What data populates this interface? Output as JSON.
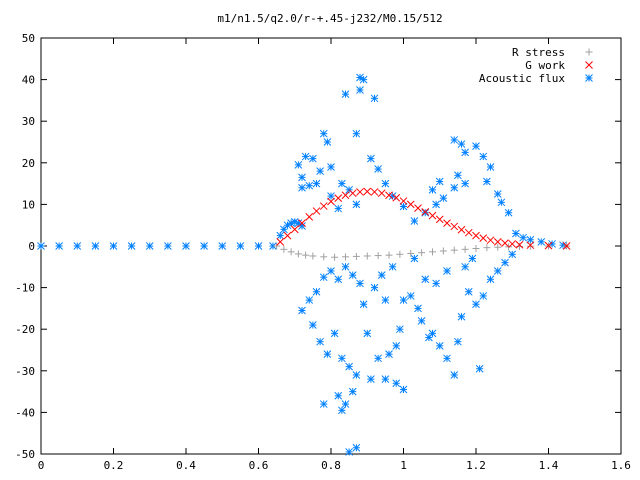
{
  "chart_data": {
    "type": "scatter",
    "title": "m1/n1.5/q2.0/r-+.45-j232/M0.15/512",
    "xlabel": "",
    "ylabel": "",
    "xlim": [
      0,
      1.6
    ],
    "ylim": [
      -50,
      50
    ],
    "x_ticks": [
      "0",
      "0.2",
      "0.4",
      "0.6",
      "0.8",
      "1",
      "1.2",
      "1.4",
      "1.6"
    ],
    "y_ticks": [
      "50",
      "40",
      "30",
      "20",
      "10",
      "0",
      "-10",
      "-20",
      "-30",
      "-40",
      "-50"
    ],
    "grid": false,
    "legend_position": "top-right",
    "series": [
      {
        "name": "R stress",
        "marker": "+",
        "color": "#a0a0a0",
        "points": [
          [
            0.65,
            0.0
          ],
          [
            0.67,
            -0.8
          ],
          [
            0.69,
            -1.4
          ],
          [
            0.71,
            -1.9
          ],
          [
            0.73,
            -2.2
          ],
          [
            0.75,
            -2.4
          ],
          [
            0.78,
            -2.6
          ],
          [
            0.81,
            -2.7
          ],
          [
            0.84,
            -2.6
          ],
          [
            0.87,
            -2.5
          ],
          [
            0.9,
            -2.4
          ],
          [
            0.93,
            -2.3
          ],
          [
            0.96,
            -2.2
          ],
          [
            0.99,
            -2.0
          ],
          [
            1.02,
            -1.8
          ],
          [
            1.05,
            -1.6
          ],
          [
            1.08,
            -1.4
          ],
          [
            1.11,
            -1.2
          ],
          [
            1.14,
            -1.0
          ],
          [
            1.17,
            -0.8
          ],
          [
            1.2,
            -0.6
          ],
          [
            1.23,
            -0.4
          ],
          [
            1.26,
            -0.3
          ],
          [
            1.29,
            -0.2
          ],
          [
            1.32,
            -0.1
          ],
          [
            1.35,
            -0.05
          ],
          [
            1.4,
            0.0
          ],
          [
            1.45,
            0.0
          ]
        ]
      },
      {
        "name": "G work",
        "marker": "x",
        "color": "#ff0000",
        "points": [
          [
            0.66,
            1.0
          ],
          [
            0.68,
            2.5
          ],
          [
            0.7,
            4.0
          ],
          [
            0.72,
            5.5
          ],
          [
            0.74,
            7.0
          ],
          [
            0.76,
            8.4
          ],
          [
            0.78,
            9.6
          ],
          [
            0.8,
            10.7
          ],
          [
            0.82,
            11.5
          ],
          [
            0.84,
            12.2
          ],
          [
            0.86,
            12.7
          ],
          [
            0.88,
            13.0
          ],
          [
            0.9,
            13.1
          ],
          [
            0.92,
            13.0
          ],
          [
            0.94,
            12.7
          ],
          [
            0.96,
            12.2
          ],
          [
            0.98,
            11.6
          ],
          [
            1.0,
            10.8
          ],
          [
            1.02,
            10.0
          ],
          [
            1.04,
            9.1
          ],
          [
            1.06,
            8.2
          ],
          [
            1.08,
            7.3
          ],
          [
            1.1,
            6.4
          ],
          [
            1.12,
            5.5
          ],
          [
            1.14,
            4.7
          ],
          [
            1.16,
            3.9
          ],
          [
            1.18,
            3.2
          ],
          [
            1.2,
            2.5
          ],
          [
            1.22,
            1.9
          ],
          [
            1.24,
            1.4
          ],
          [
            1.26,
            1.0
          ],
          [
            1.28,
            0.7
          ],
          [
            1.3,
            0.5
          ],
          [
            1.32,
            0.3
          ],
          [
            1.35,
            0.2
          ],
          [
            1.4,
            0.1
          ],
          [
            1.45,
            0.0
          ]
        ]
      },
      {
        "name": "Acoustic flux",
        "marker": "*",
        "color": "#0080ff",
        "points": [
          [
            0.0,
            0
          ],
          [
            0.05,
            0
          ],
          [
            0.1,
            0
          ],
          [
            0.15,
            0
          ],
          [
            0.2,
            0
          ],
          [
            0.25,
            0
          ],
          [
            0.3,
            0
          ],
          [
            0.35,
            0
          ],
          [
            0.4,
            0
          ],
          [
            0.45,
            0
          ],
          [
            0.5,
            0
          ],
          [
            0.55,
            0
          ],
          [
            0.6,
            0
          ],
          [
            0.64,
            0
          ],
          [
            0.66,
            2.5
          ],
          [
            0.67,
            4.0
          ],
          [
            0.68,
            5.0
          ],
          [
            0.69,
            5.5
          ],
          [
            0.7,
            5.8
          ],
          [
            0.71,
            5.5
          ],
          [
            0.72,
            4.8
          ],
          [
            0.71,
            19.5
          ],
          [
            0.73,
            21.5
          ],
          [
            0.75,
            21.0
          ],
          [
            0.77,
            18.0
          ],
          [
            0.72,
            16.5
          ],
          [
            0.76,
            15.0
          ],
          [
            0.78,
            27.0
          ],
          [
            0.79,
            25.0
          ],
          [
            0.8,
            19.0
          ],
          [
            0.83,
            15.0
          ],
          [
            0.84,
            36.5
          ],
          [
            0.87,
            27.0
          ],
          [
            0.88,
            40.5
          ],
          [
            0.88,
            37.5
          ],
          [
            0.89,
            40.0
          ],
          [
            0.92,
            35.5
          ],
          [
            0.91,
            21.0
          ],
          [
            0.85,
            13.5
          ],
          [
            0.87,
            10.0
          ],
          [
            0.82,
            9.0
          ],
          [
            0.8,
            12.0
          ],
          [
            0.74,
            14.5
          ],
          [
            0.72,
            14.0
          ],
          [
            0.93,
            18.5
          ],
          [
            0.95,
            15.0
          ],
          [
            0.97,
            12.0
          ],
          [
            1.0,
            9.5
          ],
          [
            1.03,
            6.0
          ],
          [
            1.06,
            8.0
          ],
          [
            1.09,
            10.0
          ],
          [
            1.1,
            15.5
          ],
          [
            1.08,
            13.5
          ],
          [
            1.11,
            11.5
          ],
          [
            1.14,
            14.0
          ],
          [
            1.15,
            17.0
          ],
          [
            1.17,
            15.0
          ],
          [
            1.14,
            25.5
          ],
          [
            1.16,
            24.5
          ],
          [
            1.17,
            22.5
          ],
          [
            1.2,
            24.0
          ],
          [
            1.22,
            21.5
          ],
          [
            1.24,
            19.0
          ],
          [
            1.23,
            15.5
          ],
          [
            1.26,
            12.5
          ],
          [
            1.27,
            10.5
          ],
          [
            1.29,
            8.0
          ],
          [
            1.31,
            3.0
          ],
          [
            1.33,
            2.0
          ],
          [
            1.35,
            1.5
          ],
          [
            1.38,
            1.0
          ],
          [
            1.41,
            0.5
          ],
          [
            1.44,
            0.2
          ],
          [
            1.3,
            -2.0
          ],
          [
            1.28,
            -4.0
          ],
          [
            1.26,
            -6.0
          ],
          [
            1.24,
            -8.0
          ],
          [
            1.22,
            -12.0
          ],
          [
            1.2,
            -14.0
          ],
          [
            1.21,
            -29.5
          ],
          [
            1.18,
            -11.0
          ],
          [
            1.16,
            -17.0
          ],
          [
            1.15,
            -23.0
          ],
          [
            1.14,
            -31.0
          ],
          [
            1.12,
            -27.0
          ],
          [
            1.1,
            -24.0
          ],
          [
            1.08,
            -21.0
          ],
          [
            1.07,
            -22.0
          ],
          [
            1.05,
            -18.0
          ],
          [
            1.04,
            -15.0
          ],
          [
            1.02,
            -12.0
          ],
          [
            1.0,
            -13.0
          ],
          [
            0.99,
            -20.0
          ],
          [
            0.98,
            -24.0
          ],
          [
            0.96,
            -26.0
          ],
          [
            0.95,
            -32.0
          ],
          [
            0.98,
            -33.0
          ],
          [
            1.0,
            -34.5
          ],
          [
            0.93,
            -27.0
          ],
          [
            0.91,
            -32.0
          ],
          [
            0.9,
            -21.0
          ],
          [
            0.89,
            -14.0
          ],
          [
            0.88,
            -9.0
          ],
          [
            0.86,
            -7.0
          ],
          [
            0.84,
            -5.0
          ],
          [
            0.82,
            -8.0
          ],
          [
            0.8,
            -6.0
          ],
          [
            0.78,
            -7.5
          ],
          [
            0.76,
            -11.0
          ],
          [
            0.74,
            -13.0
          ],
          [
            0.72,
            -15.5
          ],
          [
            0.75,
            -19.0
          ],
          [
            0.77,
            -23.0
          ],
          [
            0.79,
            -26.0
          ],
          [
            0.81,
            -21.0
          ],
          [
            0.83,
            -27.0
          ],
          [
            0.85,
            -29.0
          ],
          [
            0.87,
            -31.0
          ],
          [
            0.86,
            -35.0
          ],
          [
            0.84,
            -38.0
          ],
          [
            0.82,
            -36.0
          ],
          [
            0.78,
            -38.0
          ],
          [
            0.83,
            -39.5
          ],
          [
            0.85,
            -49.5
          ],
          [
            0.87,
            -48.5
          ],
          [
            0.94,
            -7.0
          ],
          [
            0.97,
            -5.0
          ],
          [
            1.03,
            -3.0
          ],
          [
            1.06,
            -8.0
          ],
          [
            1.09,
            -9.0
          ],
          [
            1.12,
            -6.0
          ],
          [
            1.17,
            -5.0
          ],
          [
            1.19,
            -3.0
          ],
          [
            0.92,
            -10.0
          ],
          [
            0.95,
            -13.0
          ]
        ]
      }
    ]
  }
}
